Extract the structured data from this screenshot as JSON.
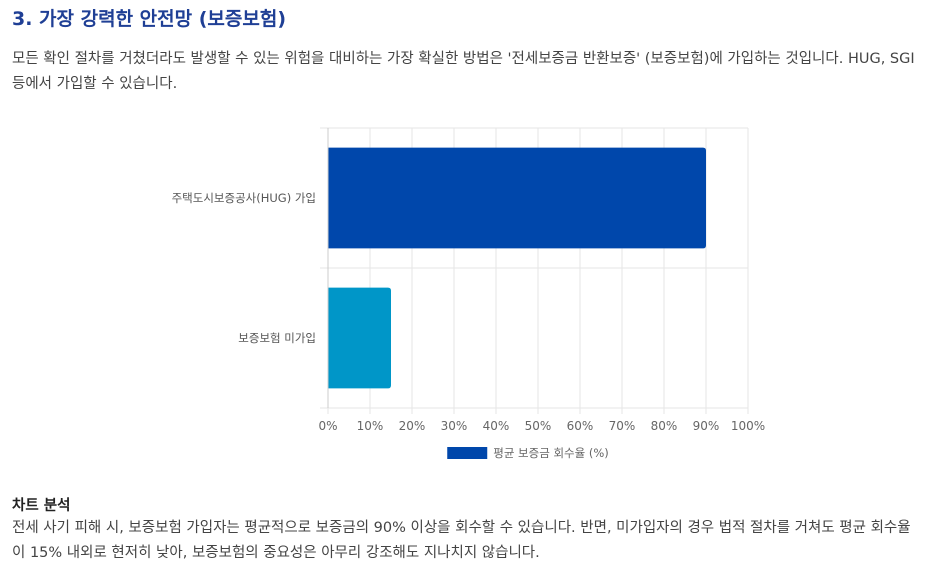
{
  "section": {
    "heading": "3. 가장 강력한 안전망 (보증보험)",
    "intro": "모든 확인 절차를 거쳤더라도 발생할 수 있는 위험을 대비하는 가장 확실한 방법은 '전세보증금 반환보증' (보증보험)에 가입하는 것입니다. HUG, SGI 등에서 가입할 수 있습니다."
  },
  "chart_data": {
    "type": "bar",
    "orientation": "horizontal",
    "categories": [
      "주택도시보증공사(HUG) 가입",
      "보증보험 미가입"
    ],
    "series": [
      {
        "name": "평균 보증금 회수율 (%)",
        "values": [
          90,
          15
        ]
      }
    ],
    "bar_colors": [
      "#0047ab",
      "#0096c8"
    ],
    "xlim": [
      0,
      100
    ],
    "xticks": [
      "0%",
      "10%",
      "20%",
      "30%",
      "40%",
      "50%",
      "60%",
      "70%",
      "80%",
      "90%",
      "100%"
    ],
    "grid": true,
    "legend_position": "bottom"
  },
  "analysis": {
    "title": "차트 분석",
    "body": "전세 사기 피해 시, 보증보험 가입자는 평균적으로 보증금의 90% 이상을 회수할 수 있습니다. 반면, 미가입자의 경우 법적 절차를 거쳐도 평균 회수율이 15% 내외로 현저히 낮아, 보증보험의 중요성은 아무리 강조해도 지나치지 않습니다."
  }
}
